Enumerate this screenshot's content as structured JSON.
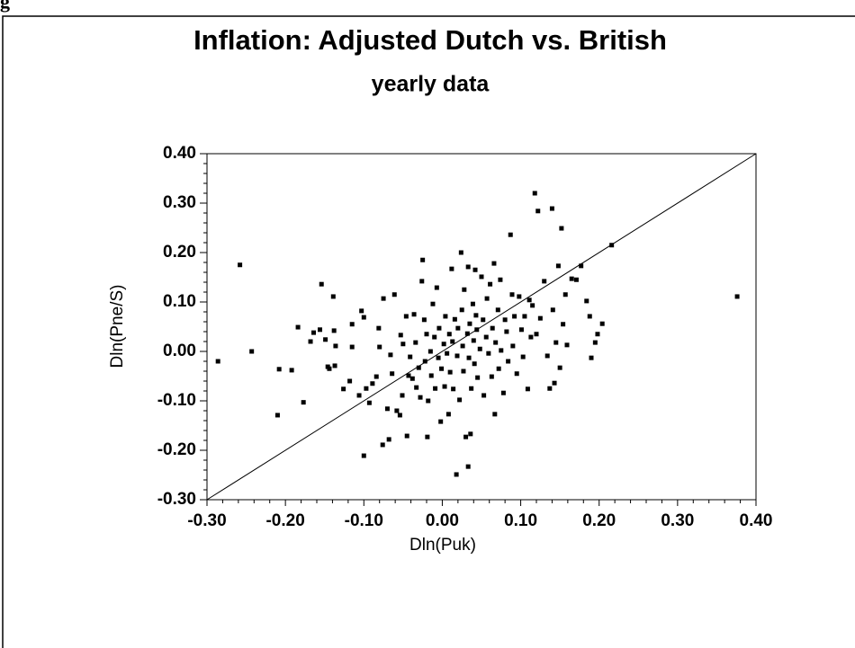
{
  "fragment": "g",
  "chart_data": {
    "type": "scatter",
    "title": "Inflation: Adjusted Dutch vs. British",
    "subtitle": "yearly data",
    "xlabel": "Dln(Puk)",
    "ylabel": "Dln(Pne/S)",
    "color": "#000000",
    "xlim": [
      -0.3,
      0.4
    ],
    "ylim": [
      -0.3,
      0.4
    ],
    "xticks": [
      {
        "value": -0.3,
        "label": "-0.30"
      },
      {
        "value": -0.2,
        "label": "-0.20"
      },
      {
        "value": -0.1,
        "label": "-0.10"
      },
      {
        "value": 0,
        "label": "0.00"
      },
      {
        "value": 0.1,
        "label": "0.10"
      },
      {
        "value": 0.2,
        "label": "0.20"
      },
      {
        "value": 0.3,
        "label": "0.30"
      },
      {
        "value": 0.4,
        "label": "0.40"
      }
    ],
    "yticks": [
      {
        "value": -0.3,
        "label": "-0.30"
      },
      {
        "value": -0.2,
        "label": "-0.20"
      },
      {
        "value": -0.1,
        "label": "-0.10"
      },
      {
        "value": 0,
        "label": "0.00"
      },
      {
        "value": 0.1,
        "label": "0.10"
      },
      {
        "value": 0.2,
        "label": "0.20"
      },
      {
        "value": 0.3,
        "label": "0.30"
      },
      {
        "value": 0.4,
        "label": "0.40"
      }
    ],
    "diagonal": true,
    "x": [
      -0.286,
      -0.258,
      -0.243,
      -0.21,
      -0.208,
      -0.192,
      -0.184,
      -0.177,
      -0.168,
      -0.164,
      -0.156,
      -0.154,
      -0.149,
      -0.146,
      -0.144,
      -0.139,
      -0.138,
      -0.136,
      -0.137,
      -0.126,
      -0.118,
      -0.115,
      -0.115,
      -0.106,
      -0.1,
      -0.1,
      -0.103,
      -0.097,
      -0.093,
      -0.089,
      -0.084,
      -0.081,
      -0.08,
      -0.076,
      -0.075,
      -0.07,
      -0.068,
      -0.066,
      -0.064,
      -0.061,
      -0.058,
      -0.054,
      -0.053,
      -0.051,
      -0.05,
      -0.046,
      -0.045,
      -0.043,
      -0.041,
      -0.038,
      -0.036,
      -0.034,
      -0.033,
      -0.03,
      -0.028,
      -0.026,
      -0.025,
      -0.023,
      -0.022,
      -0.02,
      -0.019,
      -0.018,
      -0.015,
      -0.014,
      -0.012,
      -0.01,
      -0.009,
      -0.007,
      -0.005,
      -0.004,
      -0.002,
      -0.001,
      0.002,
      0.003,
      0.004,
      0.006,
      0.008,
      0.009,
      0.01,
      0.012,
      0.013,
      0.014,
      0.016,
      0.018,
      0.019,
      0.02,
      0.022,
      0.024,
      0.025,
      0.026,
      0.027,
      0.028,
      0.03,
      0.032,
      0.033,
      0.033,
      0.034,
      0.035,
      0.036,
      0.037,
      0.039,
      0.04,
      0.041,
      0.042,
      0.043,
      0.044,
      0.045,
      0.048,
      0.05,
      0.052,
      0.053,
      0.056,
      0.057,
      0.059,
      0.061,
      0.063,
      0.064,
      0.066,
      0.067,
      0.068,
      0.071,
      0.072,
      0.074,
      0.075,
      0.078,
      0.08,
      0.082,
      0.084,
      0.087,
      0.089,
      0.09,
      0.092,
      0.095,
      0.098,
      0.101,
      0.103,
      0.105,
      0.109,
      0.111,
      0.113,
      0.115,
      0.118,
      0.12,
      0.122,
      0.125,
      0.14,
      0.13,
      0.134,
      0.137,
      0.141,
      0.143,
      0.145,
      0.148,
      0.15,
      0.152,
      0.154,
      0.157,
      0.159,
      0.165,
      0.171,
      0.177,
      0.184,
      0.188,
      0.19,
      0.195,
      0.198,
      0.204,
      0.216,
      0.376
    ],
    "values": [
      -0.02,
      0.175,
      0.0,
      -0.129,
      -0.036,
      -0.038,
      0.049,
      -0.103,
      0.02,
      0.038,
      0.044,
      0.136,
      0.024,
      -0.031,
      -0.035,
      0.111,
      0.042,
      0.011,
      -0.029,
      -0.076,
      -0.06,
      0.055,
      0.009,
      -0.089,
      0.069,
      -0.211,
      0.082,
      -0.075,
      -0.104,
      -0.065,
      -0.051,
      0.047,
      0.009,
      -0.189,
      0.107,
      -0.116,
      -0.178,
      -0.007,
      -0.045,
      0.115,
      -0.12,
      -0.129,
      0.033,
      -0.089,
      0.015,
      0.071,
      -0.171,
      -0.049,
      -0.011,
      -0.055,
      0.075,
      0.018,
      -0.073,
      -0.033,
      -0.093,
      0.142,
      0.185,
      0.064,
      -0.02,
      0.035,
      -0.173,
      -0.1,
      0.0,
      -0.049,
      0.096,
      0.029,
      -0.075,
      0.129,
      -0.013,
      0.047,
      -0.142,
      -0.035,
      0.015,
      -0.071,
      0.071,
      -0.004,
      -0.127,
      0.035,
      -0.042,
      0.167,
      0.02,
      -0.076,
      0.065,
      -0.249,
      -0.009,
      0.047,
      -0.098,
      0.2,
      0.084,
      0.011,
      -0.04,
      0.125,
      -0.173,
      0.036,
      -0.233,
      0.171,
      -0.013,
      0.056,
      -0.167,
      -0.075,
      0.096,
      0.022,
      -0.025,
      0.165,
      0.073,
      0.044,
      -0.053,
      0.005,
      0.151,
      0.064,
      -0.089,
      0.029,
      0.107,
      -0.004,
      0.136,
      -0.051,
      0.047,
      0.178,
      -0.127,
      0.018,
      0.084,
      -0.035,
      0.145,
      0.002,
      -0.084,
      0.064,
      0.04,
      -0.02,
      0.236,
      0.115,
      0.011,
      0.071,
      -0.045,
      0.111,
      0.044,
      -0.011,
      0.071,
      -0.076,
      0.104,
      0.029,
      0.093,
      0.32,
      0.035,
      0.284,
      0.067,
      0.289,
      0.142,
      -0.009,
      -0.075,
      0.084,
      -0.064,
      0.018,
      0.173,
      -0.033,
      0.249,
      0.055,
      0.115,
      0.013,
      0.147,
      0.145,
      0.173,
      0.102,
      0.071,
      -0.013,
      0.018,
      0.035,
      0.056,
      0.215,
      0.111
    ]
  }
}
